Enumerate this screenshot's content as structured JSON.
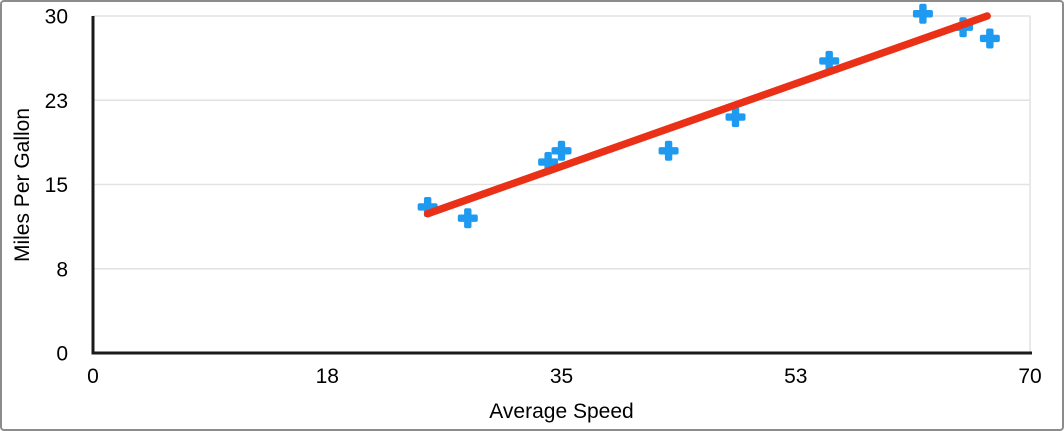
{
  "chart_data": {
    "type": "scatter",
    "title": "",
    "xlabel": "Average Speed",
    "ylabel": "Miles Per Gallon",
    "xlim": [
      0,
      70
    ],
    "ylim": [
      0,
      30
    ],
    "grid": true,
    "legend": false,
    "x_ticks": [
      {
        "value": 0,
        "label": "0"
      },
      {
        "value": 17.5,
        "label": "18"
      },
      {
        "value": 35,
        "label": "35"
      },
      {
        "value": 52.5,
        "label": "53"
      },
      {
        "value": 70,
        "label": "70"
      }
    ],
    "y_ticks": [
      {
        "value": 0,
        "label": "0"
      },
      {
        "value": 7.5,
        "label": "8"
      },
      {
        "value": 15,
        "label": "15"
      },
      {
        "value": 22.5,
        "label": "23"
      },
      {
        "value": 30,
        "label": "30"
      }
    ],
    "series": [
      {
        "name": "Miles Per Gallon",
        "marker": "plus",
        "color": "#1E9BF0",
        "points": [
          [
            25,
            13
          ],
          [
            28,
            12
          ],
          [
            34,
            17
          ],
          [
            35,
            18
          ],
          [
            43,
            18
          ],
          [
            48,
            21
          ],
          [
            55,
            26
          ],
          [
            62,
            30.2
          ],
          [
            65,
            29
          ],
          [
            67,
            28
          ]
        ]
      }
    ],
    "trendline": {
      "type": "linear",
      "color": "#EA3118",
      "x1": 25.0,
      "y1": 12.4,
      "x2": 66.8,
      "y2": 30.0
    }
  },
  "colors": {
    "marker": "#1E9BF0",
    "trendline": "#EA3118",
    "gridline": "#E2E2E2",
    "axis": "#1A1A1A",
    "text": "#000000",
    "frame_border": "#8C8C8C",
    "background": "#FFFFFF"
  }
}
